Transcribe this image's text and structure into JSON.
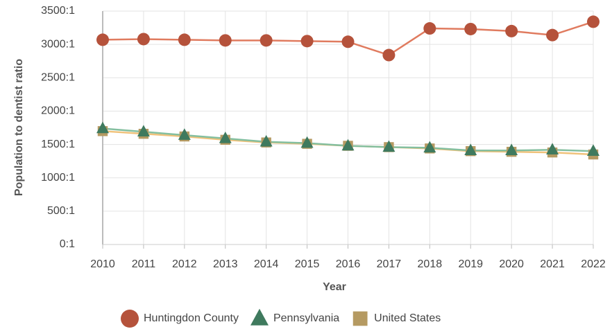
{
  "chart_data": {
    "type": "line",
    "x_label": "Year",
    "y_label": "Population to dentist ratio",
    "x": [
      2010,
      2011,
      2012,
      2013,
      2014,
      2015,
      2016,
      2017,
      2018,
      2019,
      2020,
      2021,
      2022
    ],
    "xlim": [
      2010,
      2022
    ],
    "xticks": [
      2010,
      2011,
      2012,
      2013,
      2014,
      2015,
      2016,
      2017,
      2018,
      2019,
      2020,
      2021,
      2022
    ],
    "ylim": [
      0,
      3500
    ],
    "yticks": [
      {
        "value": 0,
        "label": "0:1"
      },
      {
        "value": 500,
        "label": "500:1"
      },
      {
        "value": 1000,
        "label": "1000:1"
      },
      {
        "value": 1500,
        "label": "1500:1"
      },
      {
        "value": 2000,
        "label": "2000:1"
      },
      {
        "value": 2500,
        "label": "2500:1"
      },
      {
        "value": 3000,
        "label": "3000:1"
      },
      {
        "value": 3500,
        "label": "3500:1"
      }
    ],
    "grid": true,
    "legend": "bottom",
    "series": [
      {
        "name": "Huntingdon County",
        "color": "#b5523b",
        "line_color": "#e07b5f",
        "marker": "circle",
        "values": [
          3070,
          3080,
          3070,
          3060,
          3060,
          3050,
          3040,
          2840,
          3240,
          3230,
          3200,
          3140,
          3340
        ]
      },
      {
        "name": "Pennsylvania",
        "color": "#3f7a5e",
        "line_color": "#84bf9f",
        "marker": "triangle",
        "values": [
          1740,
          1690,
          1640,
          1590,
          1540,
          1520,
          1480,
          1460,
          1450,
          1410,
          1410,
          1420,
          1400
        ]
      },
      {
        "name": "United States",
        "color": "#b59a62",
        "line_color": "#f0c27b",
        "marker": "square",
        "values": [
          1700,
          1660,
          1620,
          1570,
          1530,
          1510,
          1480,
          1460,
          1440,
          1400,
          1390,
          1380,
          1350
        ]
      }
    ]
  }
}
